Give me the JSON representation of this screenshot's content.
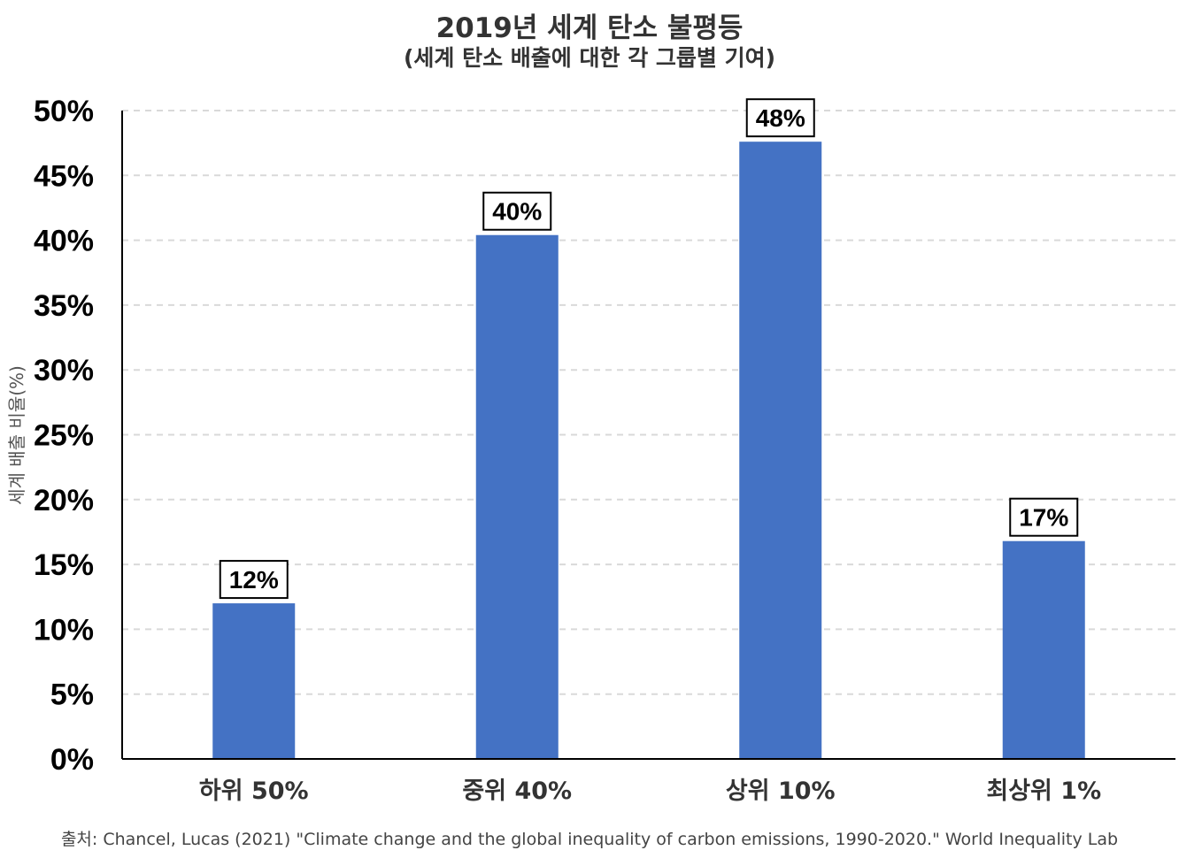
{
  "chart_data": {
    "type": "bar",
    "title": "2019년 세계 탄소 불평등",
    "subtitle": "(세계 탄소 배출에 대한 각 그룹별 기여)",
    "ylabel": "세계 배출 비율(%)",
    "xlabel": "",
    "categories": [
      "하위 50%",
      "중위 40%",
      "상위 10%",
      "최상위 1%"
    ],
    "values": [
      12,
      40.4,
      47.6,
      16.8
    ],
    "data_labels": [
      "12%",
      "40%",
      "48%",
      "17%"
    ],
    "ylim": [
      0,
      50
    ],
    "yticks": [
      0,
      5,
      10,
      15,
      20,
      25,
      30,
      35,
      40,
      45,
      50
    ],
    "ytick_labels": [
      "0%",
      "5%",
      "10%",
      "15%",
      "20%",
      "25%",
      "30%",
      "35%",
      "40%",
      "45%",
      "50%"
    ],
    "grid": true,
    "bar_color": "#4472C4",
    "source": "출처: Chancel, Lucas (2021) \"Climate change and the global inequality of carbon emissions, 1990-2020.\" World Inequality Lab"
  }
}
